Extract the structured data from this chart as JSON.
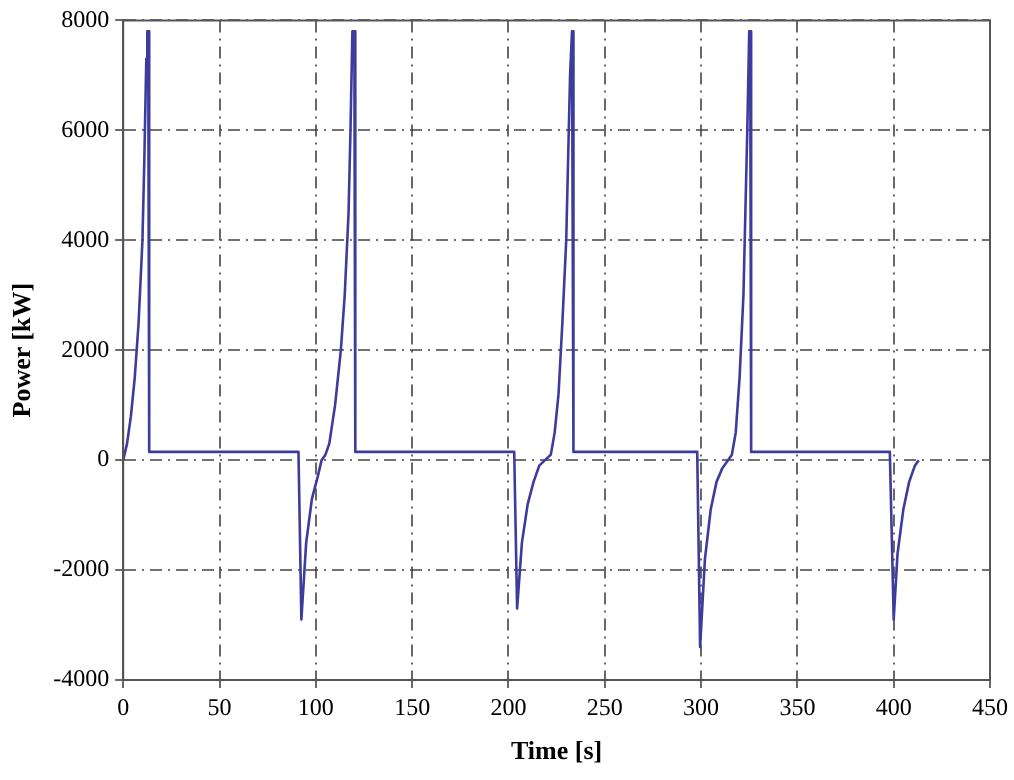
{
  "chart_data": {
    "type": "line",
    "xlabel": "Time [s]",
    "ylabel": "Power [kW]",
    "xlim": [
      0,
      450
    ],
    "xticks": [
      0,
      50,
      100,
      150,
      200,
      250,
      300,
      350,
      400,
      450
    ],
    "ylim": [
      -4000,
      8000
    ],
    "yticks": [
      -4000,
      -2000,
      0,
      2000,
      4000,
      6000,
      8000
    ],
    "grid": true,
    "line_style": "solid",
    "marker": "none",
    "series": [
      {
        "color": "#3c3c9c",
        "x": [
          0,
          2,
          4,
          6,
          8,
          10,
          11,
          12,
          12.5,
          13,
          13.5,
          91,
          92.5,
          95,
          98,
          101,
          103,
          105,
          107,
          110,
          113,
          115,
          117,
          118,
          119,
          120,
          120.5,
          203,
          204.5,
          207,
          210,
          213,
          216,
          219,
          222,
          224,
          226,
          228,
          230,
          231,
          232,
          233,
          233.5,
          234,
          298,
          299.5,
          302,
          305,
          308,
          311,
          314,
          316,
          318,
          320,
          322,
          323,
          324,
          325,
          325.5,
          326,
          398,
          400,
          402,
          405,
          408,
          411,
          413
        ],
        "values": [
          0,
          300,
          800,
          1500,
          2500,
          4000,
          5500,
          7300,
          7800,
          7800,
          150,
          150,
          -2900,
          -1500,
          -700,
          -300,
          0,
          100,
          300,
          1000,
          2000,
          3000,
          4500,
          6000,
          7800,
          7800,
          150,
          150,
          -2700,
          -1500,
          -800,
          -400,
          -100,
          0,
          100,
          500,
          1200,
          2500,
          4000,
          5500,
          7000,
          7800,
          7800,
          150,
          150,
          -3400,
          -1800,
          -900,
          -400,
          -150,
          0,
          100,
          500,
          1500,
          3000,
          4500,
          6000,
          7800,
          7800,
          150,
          150,
          -2900,
          -1700,
          -900,
          -400,
          -100,
          0
        ]
      }
    ]
  }
}
